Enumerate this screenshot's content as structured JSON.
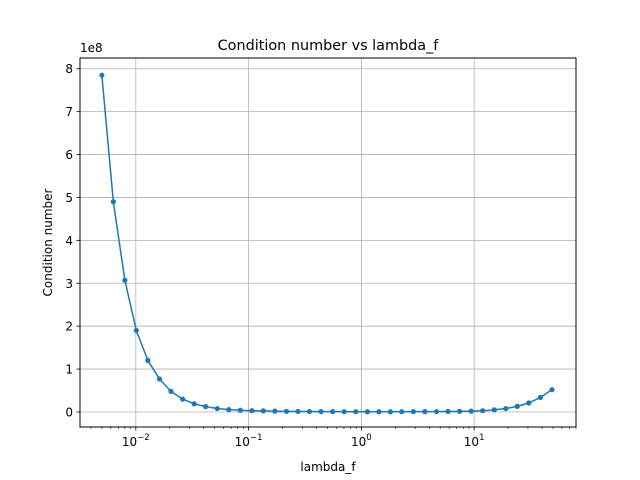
{
  "chart_data": {
    "type": "line",
    "title": "Condition number vs lambda_f",
    "xlabel": "lambda_f",
    "ylabel": "Condition number",
    "x_scale": "log",
    "y_offset_text": "1e8",
    "xlim": [
      0.0032,
      80
    ],
    "ylim": [
      -35000000,
      825000000
    ],
    "grid": true,
    "marker": "circle",
    "color": "#1f77b4",
    "x_ticks": [
      {
        "value": 0.01,
        "base": "10",
        "exp": "−2"
      },
      {
        "value": 0.1,
        "base": "10",
        "exp": "−1"
      },
      {
        "value": 1,
        "base": "10",
        "exp": "0"
      },
      {
        "value": 10,
        "base": "10",
        "exp": "1"
      }
    ],
    "y_ticks": [
      {
        "value": 0,
        "label": "0"
      },
      {
        "value": 100000000,
        "label": "1"
      },
      {
        "value": 200000000,
        "label": "2"
      },
      {
        "value": 300000000,
        "label": "3"
      },
      {
        "value": 400000000,
        "label": "4"
      },
      {
        "value": 500000000,
        "label": "5"
      },
      {
        "value": 600000000,
        "label": "6"
      },
      {
        "value": 700000000,
        "label": "7"
      },
      {
        "value": 800000000,
        "label": "8"
      }
    ],
    "series": [
      {
        "x": [
          0.005,
          0.00632,
          0.008,
          0.0101,
          0.0128,
          0.0162,
          0.0205,
          0.026,
          0.0329,
          0.0416,
          0.0527,
          0.0667,
          0.0844,
          0.107,
          0.135,
          0.171,
          0.217,
          0.274,
          0.347,
          0.439,
          0.556,
          0.704,
          0.891,
          1.13,
          1.43,
          1.81,
          2.28,
          2.89,
          3.66,
          4.64,
          5.87,
          7.43,
          9.4,
          11.9,
          15.1,
          19.1,
          24.1,
          30.5,
          38.7,
          49
        ],
        "y": [
          785000000,
          490000000,
          307000000,
          190000000,
          120000000,
          77000000,
          48000000,
          30000000,
          19000000,
          12500000,
          8000000,
          5500000,
          4000000,
          3000000,
          2500000,
          2000000,
          1500000,
          1200000,
          1000000,
          900000,
          800000,
          700000,
          650000,
          600000,
          600000,
          600000,
          650000,
          700000,
          800000,
          900000,
          1200000,
          1500000,
          2000000,
          3000000,
          5000000,
          8000000,
          13000000,
          21000000,
          34000000,
          52000000
        ]
      }
    ]
  }
}
